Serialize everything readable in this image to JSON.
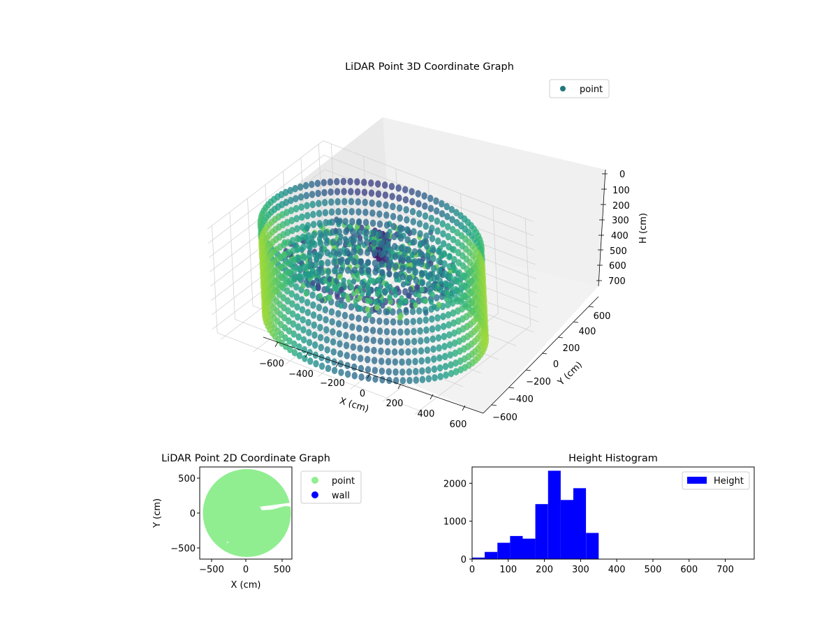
{
  "chart_data": [
    {
      "type": "scatter",
      "projection": "3d",
      "title": "LiDAR Point 3D Coordinate Graph",
      "xlabel": "X (cm)",
      "ylabel": "Y (cm)",
      "zlabel": "H (cm)",
      "x_ticks": [
        "−600",
        "−400",
        "−200",
        "0",
        "200",
        "400",
        "600"
      ],
      "y_ticks": [
        "−600",
        "−400",
        "−200",
        "0",
        "200",
        "400",
        "600"
      ],
      "z_ticks": [
        "0",
        "100",
        "200",
        "300",
        "400",
        "500",
        "600",
        "700"
      ],
      "xlim": [
        -650,
        650
      ],
      "ylim": [
        -650,
        650
      ],
      "zlim": [
        0,
        750
      ],
      "z_inverted": true,
      "colormap": "viridis",
      "legend": {
        "label": "point",
        "color": "#21777c",
        "placement": "top-right"
      },
      "description": "Cylindrical wall of points (radius about 600 cm) spanning heights about 0 to 700 cm, with an irregular cluster of interior points around 200 to 350 cm height"
    },
    {
      "type": "scatter",
      "title": "LiDAR Point 2D Coordinate Graph",
      "xlabel": "X (cm)",
      "ylabel": "Y (cm)",
      "x_ticks": [
        "−500",
        "0",
        "500"
      ],
      "y_ticks": [
        "−500",
        "0",
        "500"
      ],
      "xlim": [
        -650,
        650
      ],
      "ylim": [
        -650,
        650
      ],
      "series": [
        {
          "name": "point",
          "color": "#90ee90",
          "shape": "filled disk of radius 620 cm with a narrow gap near x 200 to 500, y 80 to 130"
        },
        {
          "name": "wall",
          "color": "#0000ff",
          "points": []
        }
      ],
      "legend": "outside-right"
    },
    {
      "type": "bar",
      "title": "Height Histogram",
      "xlabel": "",
      "ylabel": "",
      "x_ticks": [
        "0",
        "100",
        "200",
        "300",
        "400",
        "500",
        "600",
        "700"
      ],
      "y_ticks": [
        "0",
        "1000",
        "2000"
      ],
      "xlim": [
        0,
        780
      ],
      "ylim": [
        0,
        2430
      ],
      "bin_width": 35,
      "bins": [
        {
          "start": 0,
          "end": 35,
          "count": 40
        },
        {
          "start": 35,
          "end": 70,
          "count": 190
        },
        {
          "start": 70,
          "end": 105,
          "count": 430
        },
        {
          "start": 105,
          "end": 140,
          "count": 610
        },
        {
          "start": 140,
          "end": 175,
          "count": 540
        },
        {
          "start": 175,
          "end": 210,
          "count": 1450
        },
        {
          "start": 210,
          "end": 245,
          "count": 2330
        },
        {
          "start": 245,
          "end": 280,
          "count": 1560
        },
        {
          "start": 280,
          "end": 315,
          "count": 1870
        },
        {
          "start": 315,
          "end": 350,
          "count": 690
        }
      ],
      "series": [
        {
          "name": "Height",
          "color": "#0000ff"
        }
      ],
      "legend": "top-right"
    }
  ]
}
